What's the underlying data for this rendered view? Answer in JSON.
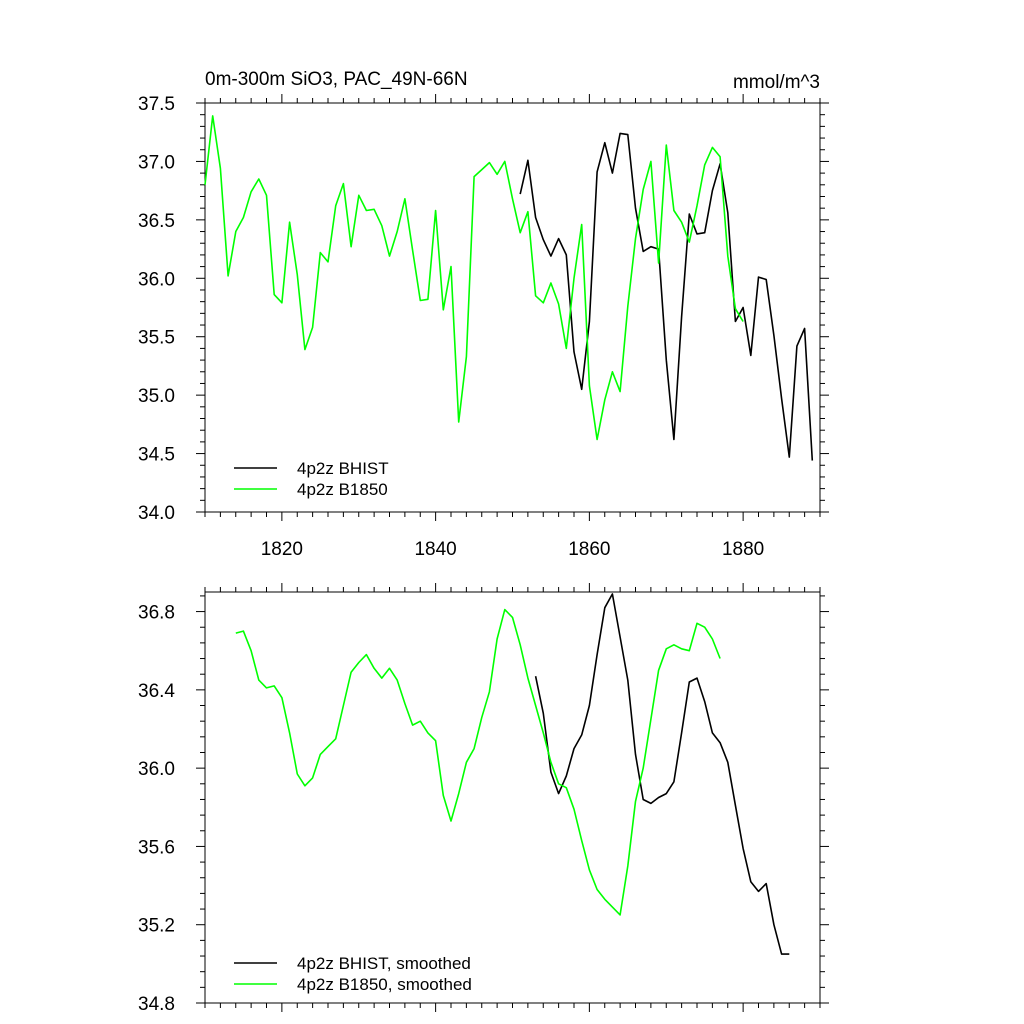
{
  "chart_data": [
    {
      "type": "line",
      "title": "0m-300m SiO3, PAC_49N-66N",
      "units": "mmol/m^3",
      "xlim": [
        1810,
        1890
      ],
      "ylim": [
        34.0,
        37.5
      ],
      "xticks": [
        1820,
        1840,
        1860,
        1880
      ],
      "xtick_labels": [
        "1820",
        "1840",
        "1860",
        "1880"
      ],
      "yticks": [
        34.0,
        34.5,
        35.0,
        35.5,
        36.0,
        36.5,
        37.0,
        37.5
      ],
      "ytick_labels": [
        "34.0",
        "34.5",
        "35.0",
        "35.5",
        "36.0",
        "36.5",
        "37.0",
        "37.5"
      ],
      "legend_position": "bottom-left",
      "series": [
        {
          "name": "4p2z BHIST",
          "color": "#000000",
          "x": [
            1851,
            1852,
            1853,
            1854,
            1855,
            1856,
            1857,
            1858,
            1859,
            1860,
            1861,
            1862,
            1863,
            1864,
            1865,
            1866,
            1867,
            1868,
            1869,
            1870,
            1871,
            1872,
            1873,
            1874,
            1875,
            1876,
            1877,
            1878,
            1879,
            1880,
            1881,
            1882,
            1883,
            1884,
            1885,
            1886,
            1887,
            1888,
            1889
          ],
          "y": [
            36.72,
            37.01,
            36.52,
            36.33,
            36.19,
            36.34,
            36.2,
            35.37,
            35.05,
            35.63,
            36.91,
            37.16,
            36.9,
            37.24,
            37.23,
            36.6,
            36.23,
            36.27,
            36.25,
            35.3,
            34.62,
            35.67,
            36.55,
            36.38,
            36.39,
            36.75,
            36.98,
            36.56,
            35.63,
            35.75,
            35.34,
            36.01,
            35.99,
            35.51,
            34.97,
            34.47,
            35.42,
            35.57,
            34.44
          ]
        },
        {
          "name": "4p2z B1850",
          "color": "#00ff00",
          "x": [
            1810,
            1811,
            1812,
            1813,
            1814,
            1815,
            1816,
            1817,
            1818,
            1819,
            1820,
            1821,
            1822,
            1823,
            1824,
            1825,
            1826,
            1827,
            1828,
            1829,
            1830,
            1831,
            1832,
            1833,
            1834,
            1835,
            1836,
            1837,
            1838,
            1839,
            1840,
            1841,
            1842,
            1843,
            1844,
            1845,
            1846,
            1847,
            1848,
            1849,
            1850,
            1851,
            1852,
            1853,
            1854,
            1855,
            1856,
            1857,
            1858,
            1859,
            1860,
            1861,
            1862,
            1863,
            1864,
            1865,
            1866,
            1867,
            1868,
            1869,
            1870,
            1871,
            1872,
            1873,
            1874,
            1875,
            1876,
            1877,
            1878,
            1879,
            1880
          ],
          "y": [
            36.8,
            37.39,
            36.94,
            36.02,
            36.4,
            36.52,
            36.74,
            36.85,
            36.71,
            35.86,
            35.79,
            36.48,
            36.03,
            35.39,
            35.58,
            36.22,
            36.14,
            36.62,
            36.81,
            36.27,
            36.71,
            36.58,
            36.59,
            36.45,
            36.19,
            36.4,
            36.68,
            36.24,
            35.81,
            35.82,
            36.58,
            35.73,
            36.1,
            34.77,
            35.33,
            36.87,
            36.93,
            36.99,
            36.89,
            37.0,
            36.68,
            36.39,
            36.57,
            35.85,
            35.79,
            35.96,
            35.78,
            35.4,
            36.0,
            36.46,
            35.08,
            34.62,
            34.96,
            35.2,
            35.03,
            35.76,
            36.34,
            36.76,
            37.0,
            36.13,
            37.14,
            36.58,
            36.48,
            36.31,
            36.62,
            36.97,
            37.12,
            37.04,
            36.19,
            35.74,
            35.63
          ]
        }
      ]
    },
    {
      "type": "line",
      "title": "",
      "units": "",
      "xlim": [
        1810,
        1890
      ],
      "ylim": [
        34.8,
        36.9
      ],
      "xticks": [
        1820,
        1840,
        1860,
        1880
      ],
      "xtick_labels": [],
      "yticks": [
        34.8,
        35.2,
        35.6,
        36.0,
        36.4,
        36.8
      ],
      "ytick_labels": [
        "34.8",
        "35.2",
        "35.6",
        "36.0",
        "36.4",
        "36.8"
      ],
      "legend_position": "bottom-left",
      "series": [
        {
          "name": "4p2z BHIST, smoothed",
          "color": "#000000",
          "x": [
            1853,
            1854,
            1855,
            1856,
            1857,
            1858,
            1859,
            1860,
            1861,
            1862,
            1863,
            1864,
            1865,
            1866,
            1867,
            1868,
            1869,
            1870,
            1871,
            1872,
            1873,
            1874,
            1875,
            1876,
            1877,
            1878,
            1879,
            1880,
            1881,
            1882,
            1883,
            1884,
            1885,
            1886
          ],
          "y": [
            36.47,
            36.28,
            35.98,
            35.87,
            35.96,
            36.1,
            36.17,
            36.32,
            36.58,
            36.82,
            36.89,
            36.67,
            36.45,
            36.07,
            35.84,
            35.82,
            35.85,
            35.87,
            35.93,
            36.18,
            36.44,
            36.46,
            36.34,
            36.18,
            36.13,
            36.03,
            35.81,
            35.59,
            35.42,
            35.37,
            35.41,
            35.2,
            35.05,
            35.05
          ]
        },
        {
          "name": "4p2z B1850, smoothed",
          "color": "#00ff00",
          "x": [
            1814,
            1815,
            1816,
            1817,
            1818,
            1819,
            1820,
            1821,
            1822,
            1823,
            1824,
            1825,
            1826,
            1827,
            1828,
            1829,
            1830,
            1831,
            1832,
            1833,
            1834,
            1835,
            1836,
            1837,
            1838,
            1839,
            1840,
            1841,
            1842,
            1843,
            1844,
            1845,
            1846,
            1847,
            1848,
            1849,
            1850,
            1851,
            1852,
            1853,
            1854,
            1855,
            1856,
            1857,
            1858,
            1859,
            1860,
            1861,
            1862,
            1863,
            1864,
            1865,
            1866,
            1867,
            1868,
            1869,
            1870,
            1871,
            1872,
            1873,
            1874,
            1875,
            1876,
            1877
          ],
          "y": [
            36.69,
            36.7,
            36.6,
            36.45,
            36.41,
            36.42,
            36.36,
            36.18,
            35.97,
            35.91,
            35.95,
            36.07,
            36.11,
            36.15,
            36.32,
            36.49,
            36.54,
            36.58,
            36.51,
            36.46,
            36.51,
            36.45,
            36.33,
            36.22,
            36.24,
            36.18,
            36.14,
            35.86,
            35.73,
            35.87,
            36.03,
            36.1,
            36.26,
            36.39,
            36.66,
            36.81,
            36.77,
            36.63,
            36.46,
            36.32,
            36.18,
            36.03,
            35.92,
            35.9,
            35.79,
            35.63,
            35.48,
            35.38,
            35.33,
            35.29,
            35.25,
            35.5,
            35.83,
            36.0,
            36.25,
            36.5,
            36.61,
            36.63,
            36.61,
            36.6,
            36.74,
            36.72,
            36.66,
            36.56
          ]
        }
      ]
    }
  ]
}
